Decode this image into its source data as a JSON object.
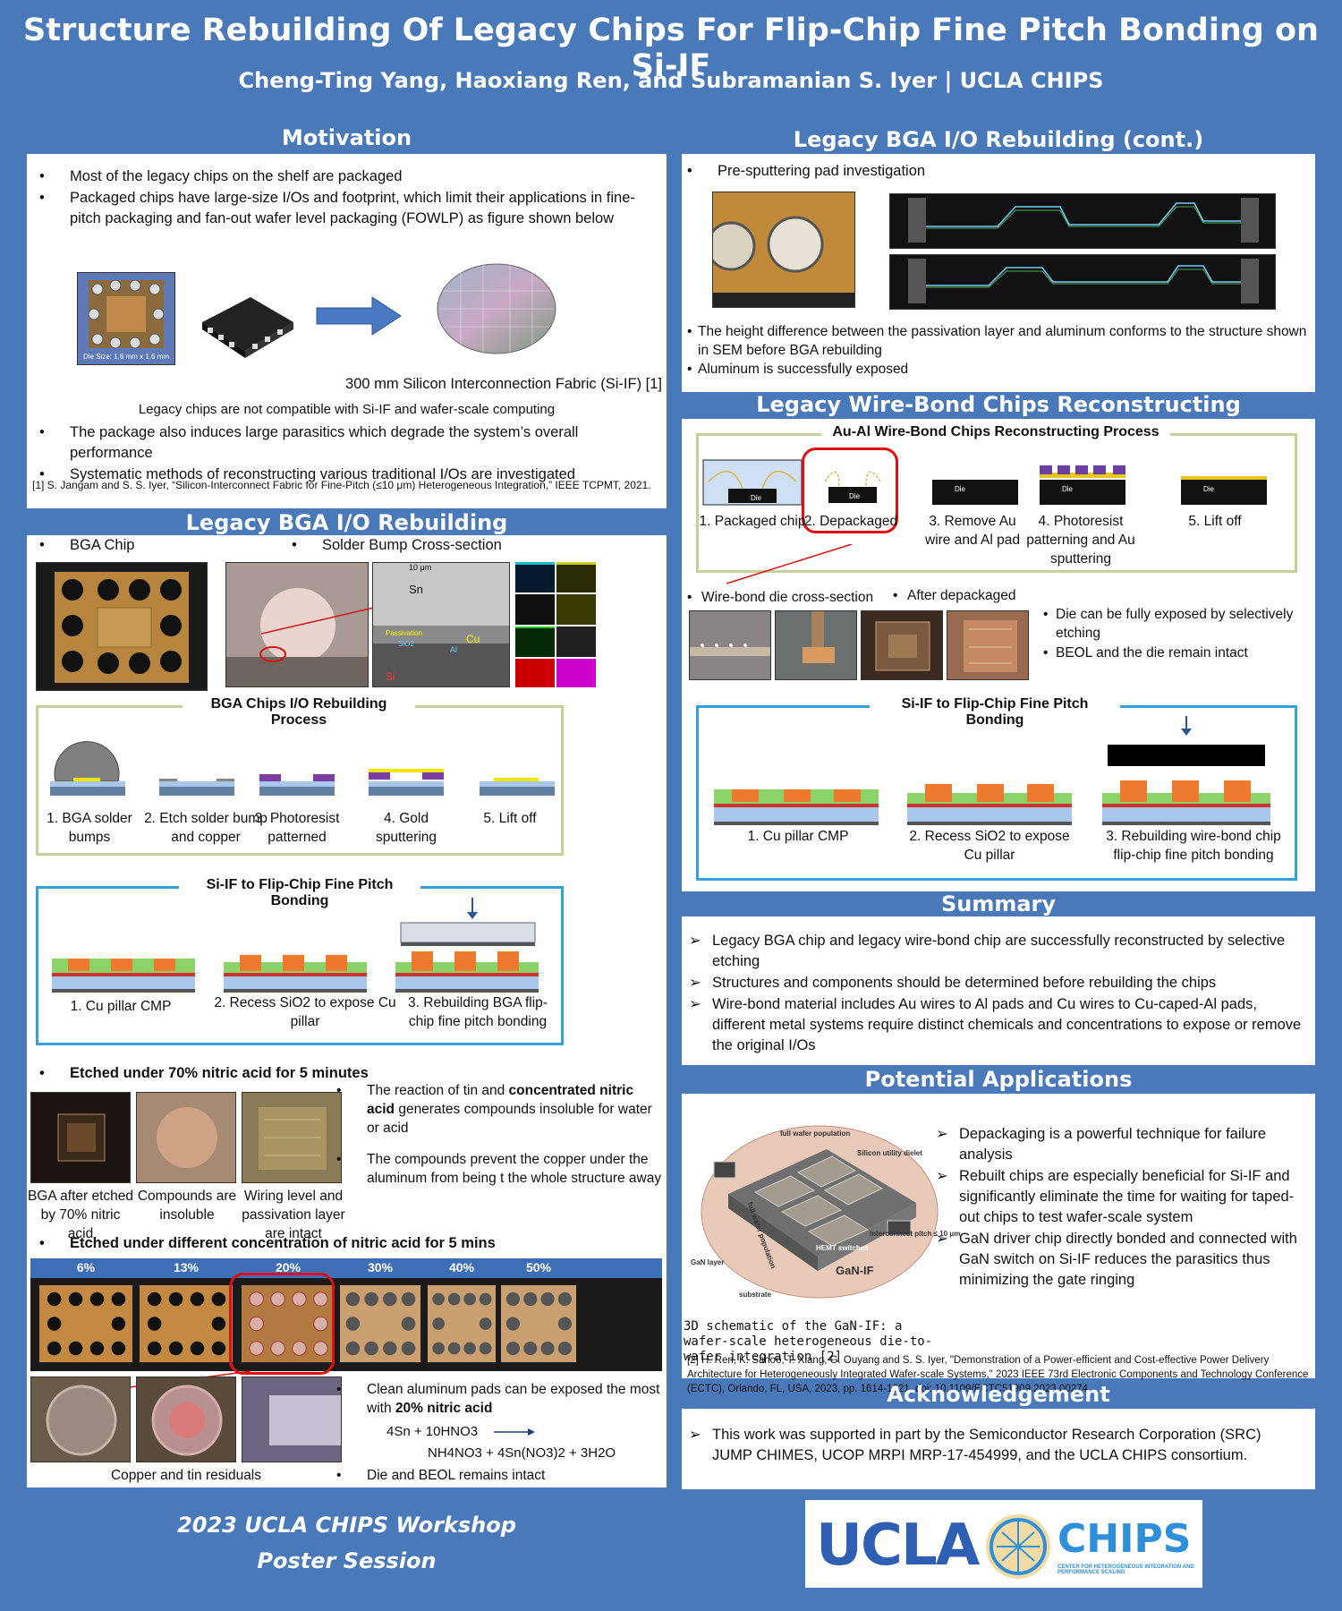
{
  "header": {
    "title": "Structure Rebuilding Of Legacy Chips For Flip-Chip Fine Pitch Bonding on Si-IF",
    "authors": "Cheng-Ting Yang, Haoxiang Ren, and Subramanian S. Iyer  |  UCLA CHIPS"
  },
  "motivation": {
    "heading": "Motivation",
    "bullets": [
      "Most of the legacy chips on the shelf are packaged",
      "Packaged chips have large-size I/Os and footprint, which limit their applications in fine-pitch packaging and fan-out wafer level packaging (FOWLP) as figure shown below"
    ],
    "die_size": "Die Size: 1.6 mm x 1.6 mm",
    "wafer_caption": "300 mm Silicon Interconnection Fabric (Si-IF) [1]",
    "compat_caption": "Legacy chips  are not compatible with Si-IF and wafer-scale computing",
    "bullets2": [
      "The package also induces large parasitics which degrade the system’s overall performance",
      "Systematic methods of reconstructing various traditional I/Os are investigated"
    ],
    "ref": "[1] S. Jangam and S. S. Iyer, “Silicon-Interconnect Fabric for Fine-Pitch (≤10 μm) Heterogeneous Integration,” IEEE TCPMT, 2021."
  },
  "bga": {
    "heading": "Legacy BGA I/O Rebuilding",
    "bga_chip": "BGA Chip",
    "cross_section": "Solder Bump Cross-section",
    "sem_scale": "10 μm",
    "sem_labels": [
      "Sn",
      "Passivation",
      "SiO2",
      "Cu",
      "Al",
      "Si"
    ],
    "process_title": "BGA Chips I/O Rebuilding Process",
    "process_steps": [
      "1. BGA solder bumps",
      "2. Etch solder bump and copper",
      "3. Photoresist patterned",
      "4. Gold sputtering",
      "5. Lift off"
    ],
    "bond_title": "Si-IF to Flip-Chip Fine Pitch Bonding",
    "bond_steps": [
      "1. Cu pillar CMP",
      "2. Recess SiO2 to expose Cu pillar",
      "3. Rebuilding BGA flip-chip fine pitch bonding"
    ],
    "etch70_title": "Etched under 70% nitric acid for 5 minutes",
    "etch70_caps": [
      "BGA after etched by 70% nitric acid",
      "Compounds are insoluble",
      "Wiring level and passivation layer are intact"
    ],
    "etch70_bullets_html": [
      "The reaction of tin and <b>concentrated nitric acid</b> generates compounds insoluble for water or acid",
      "The compounds prevent the copper under the aluminum from being t the whole structure away"
    ],
    "conc_title": "Etched under different concentration of nitric acid for 5 mins",
    "conc_labels": [
      "6%",
      "13%",
      "20%",
      "30%",
      "40%",
      "50%"
    ],
    "residual_cap": "Copper and tin residuals",
    "clean_bullet_pre": "Clean aluminum pads can be exposed the most with ",
    "clean_bullet_bold": "20% nitric acid",
    "eq1": "4Sn + 10HNO3",
    "eq2": "NH4NO3 + 4Sn(NO3)2 + 3H2O",
    "die_beol": "Die and BEOL remains intact"
  },
  "bga_cont": {
    "heading": "Legacy BGA I/O Rebuilding (cont.)",
    "pre_sputter": "Pre-sputtering pad investigation",
    "bullets": [
      "The height difference between the passivation layer and aluminum conforms to  the structure shown in SEM before BGA rebuilding",
      "Aluminum is successfully exposed"
    ]
  },
  "wirebond": {
    "heading": "Legacy Wire-Bond Chips Reconstructing",
    "process_title": "Au-Al Wire-Bond Chips Reconstructing Process",
    "steps": [
      "1. Packaged chip",
      "2. Depackaged",
      "3. Remove Au wire and Al pad",
      "4. Photoresist patterning and Au sputtering",
      "5. Lift off"
    ],
    "die_label": "Die",
    "cross_label": "Wire-bond die cross-section",
    "after_label": "After depackaged",
    "bullets": [
      "Die can be fully exposed by selectively etching",
      "BEOL and the die remain intact"
    ],
    "bond_title": "Si-IF to Flip-Chip Fine Pitch Bonding",
    "bond_steps": [
      "1. Cu pillar CMP",
      "2. Recess SiO2 to expose Cu pillar",
      "3. Rebuilding wire-bond chip flip-chip fine pitch bonding"
    ]
  },
  "summary": {
    "heading": "Summary",
    "bullets": [
      "Legacy BGA chip and legacy wire-bond chip are successfully reconstructed by selective etching",
      "Structures and components should be determined before rebuilding the chips",
      "Wire-bond material includes Au wires to Al pads and Cu wires to Cu-caped-Al pads, different metal systems require distinct chemicals and concentrations to expose or remove the original I/Os"
    ]
  },
  "applications": {
    "heading": "Potential Applications",
    "bullets": [
      "Depackaging is a powerful technique for failure analysis",
      "Rebuilt chips are especially beneficial for Si-IF and significantly eliminate the time for waiting for taped-out chips to test  wafer-scale system",
      "GaN driver chip directly bonded and connected with GaN switch on Si-IF reduces the parasitics thus minimizing the gate ringing"
    ],
    "schematic_labels": [
      "full wafer population",
      "Silicon utility dielet",
      "Interconnect pitch ≤ 10 μm",
      "GaN layer",
      "substrate",
      "full wafer population",
      "HEMT switches",
      "GaN-IF"
    ],
    "caption": "3D schematic of the GaN-IF: a wafer-scale heterogeneous die-to-wafer integration [2]",
    "ref": "[2] H. Ren, K. Sahoo, T. Xiang, G. Ouyang and S. S. Iyer, \"Demonstration of a Power-efficient and Cost-effective Power Delivery Architecture for Heterogeneously Integrated Wafer-scale Systems,\" 2023 IEEE 73rd Electronic Components and Technology Conference (ECTC), Orlando, FL, USA, 2023, pp. 1614-1621, doi: 10.1109/ECTC51909.2023.00274."
  },
  "ack": {
    "heading": "Acknowledgement",
    "text": "This work was supported in part by the Semiconductor Research Corporation (SRC) JUMP CHIMES, UCOP MRPI MRP-17-454999, and the UCLA CHIPS consortium."
  },
  "footer": {
    "line1": "2023 UCLA CHIPS Workshop",
    "line2": "Poster Session",
    "logo_ucla": "UCLA",
    "logo_chips": "CHIPS",
    "logo_sub": "CENTER FOR HETEROGENEOUS INTEGRATION AND PERFORMANCE SCALING"
  }
}
